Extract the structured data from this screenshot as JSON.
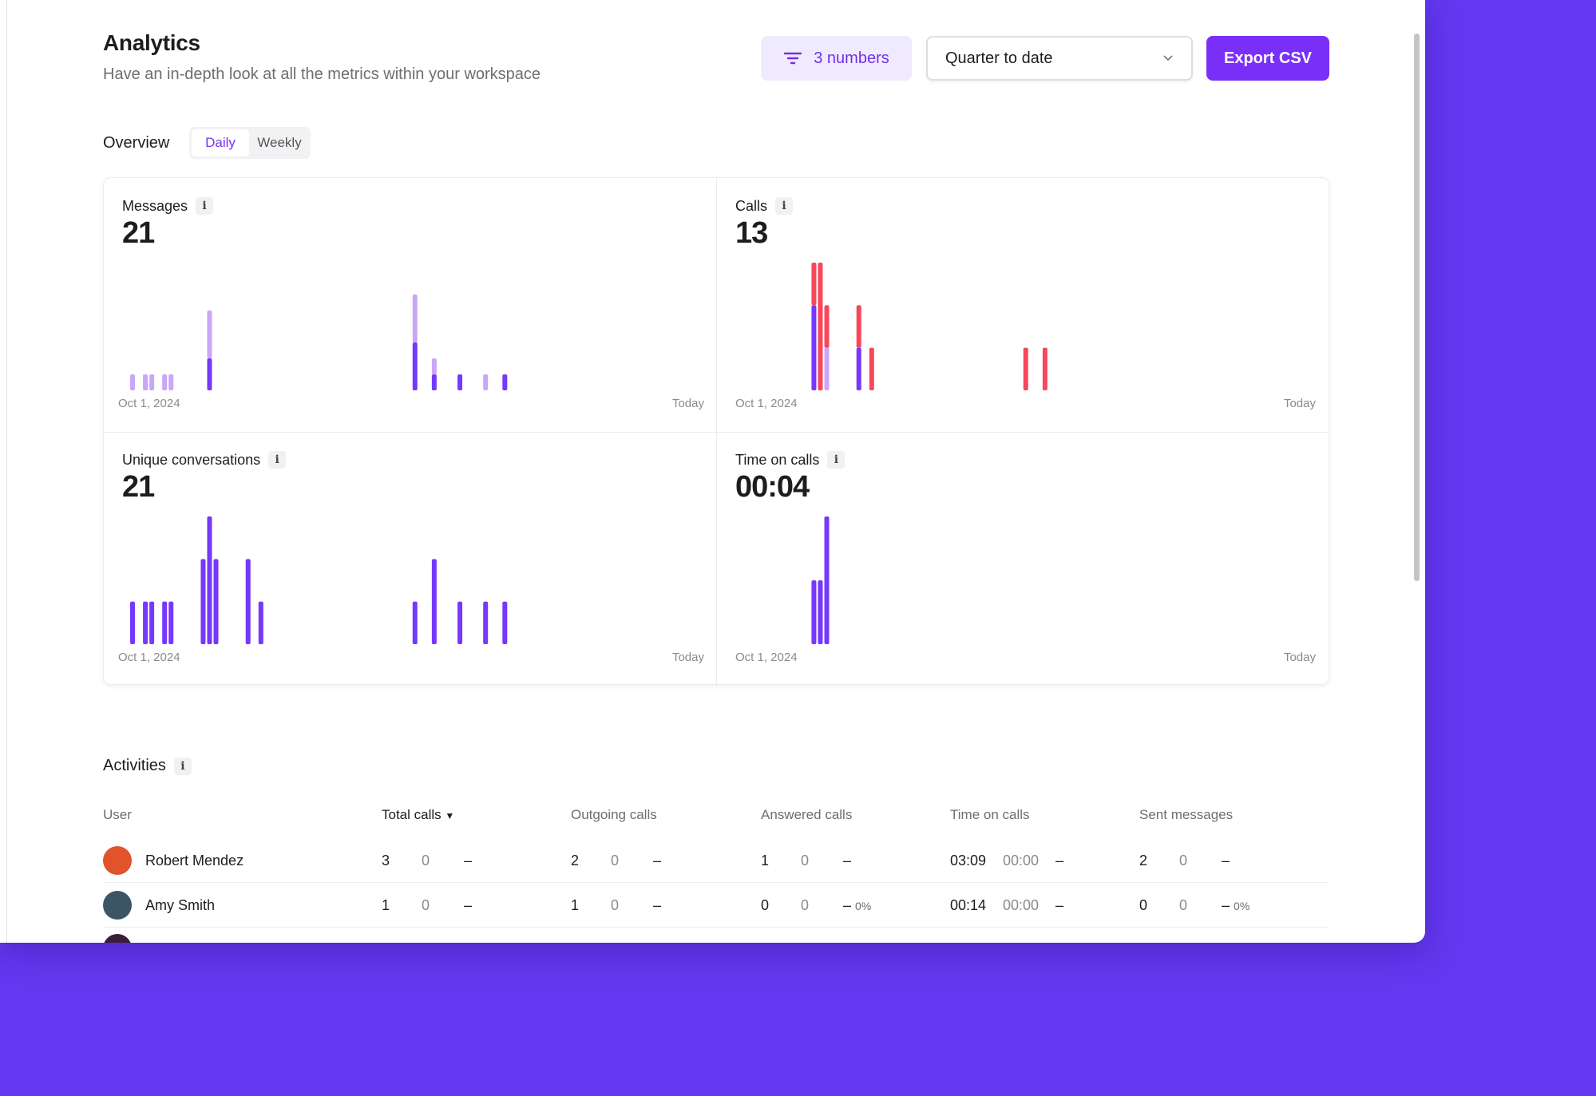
{
  "header": {
    "title": "Analytics",
    "subtitle": "Have an in-depth look at all the metrics within your workspace",
    "filter_label": "3 numbers",
    "period": "Quarter to date",
    "export_label": "Export CSV"
  },
  "overview": {
    "label": "Overview",
    "tabs": [
      {
        "label": "Daily",
        "active": true
      },
      {
        "label": "Weekly",
        "active": false
      }
    ]
  },
  "colors": {
    "accent": "#7a2ff7",
    "light": "#c9a6f7",
    "red": "#f7485a",
    "background": "#6338f0"
  },
  "chart_data": [
    {
      "type": "bar",
      "stacked": true,
      "title": "Messages",
      "value": "21",
      "x_range": [
        "2024-10-01",
        "2024-11-28"
      ],
      "x_start_label": "Oct 1, 2024",
      "x_end_label": "Today",
      "ylim": [
        0,
        8
      ],
      "series": [
        {
          "color": "#7638fa",
          "points": [
            [
              "2024-10-13",
              2
            ],
            [
              "2024-11-14",
              3
            ],
            [
              "2024-11-17",
              1
            ],
            [
              "2024-11-21",
              1
            ],
            [
              "2024-11-28",
              1
            ]
          ]
        },
        {
          "color": "#c9a6f7",
          "points": [
            [
              "2024-10-01",
              1
            ],
            [
              "2024-10-03",
              1
            ],
            [
              "2024-10-04",
              1
            ],
            [
              "2024-10-06",
              1
            ],
            [
              "2024-10-07",
              1
            ],
            [
              "2024-10-13",
              3
            ],
            [
              "2024-11-14",
              3
            ],
            [
              "2024-11-17",
              1
            ],
            [
              "2024-11-25",
              1
            ]
          ]
        }
      ]
    },
    {
      "type": "bar",
      "stacked": true,
      "title": "Calls",
      "value": "13",
      "x_range": [
        "2024-10-01",
        "2024-11-28"
      ],
      "x_start_label": "Oct 1, 2024",
      "x_end_label": "Today",
      "ylim": [
        0,
        3
      ],
      "series": [
        {
          "color": "#7638fa",
          "points": [
            [
              "2024-10-12",
              2
            ],
            [
              "2024-10-19",
              1
            ]
          ]
        },
        {
          "color": "#c9a6f7",
          "points": [
            [
              "2024-10-14",
              1
            ]
          ]
        },
        {
          "color": "#f7485a",
          "points": [
            [
              "2024-10-12",
              1
            ],
            [
              "2024-10-13",
              3
            ],
            [
              "2024-10-14",
              1
            ],
            [
              "2024-10-19",
              1
            ],
            [
              "2024-10-21",
              1
            ],
            [
              "2024-11-14",
              1
            ],
            [
              "2024-11-17",
              1
            ]
          ]
        }
      ]
    },
    {
      "type": "bar",
      "stacked": false,
      "title": "Unique conversations",
      "value": "21",
      "x_range": [
        "2024-10-01",
        "2024-11-28"
      ],
      "x_start_label": "Oct 1, 2024",
      "x_end_label": "Today",
      "ylim": [
        0,
        3
      ],
      "series": [
        {
          "color": "#7638fa",
          "points": [
            [
              "2024-10-01",
              1
            ],
            [
              "2024-10-03",
              1
            ],
            [
              "2024-10-04",
              1
            ],
            [
              "2024-10-06",
              1
            ],
            [
              "2024-10-07",
              1
            ],
            [
              "2024-10-12",
              2
            ],
            [
              "2024-10-13",
              3
            ],
            [
              "2024-10-14",
              2
            ],
            [
              "2024-10-19",
              2
            ],
            [
              "2024-10-21",
              1
            ],
            [
              "2024-11-14",
              1
            ],
            [
              "2024-11-17",
              2
            ],
            [
              "2024-11-21",
              1
            ],
            [
              "2024-11-25",
              1
            ],
            [
              "2024-11-28",
              1
            ]
          ]
        }
      ]
    },
    {
      "type": "bar",
      "stacked": false,
      "title": "Time on calls",
      "value": "00:04",
      "x_range": [
        "2024-10-01",
        "2024-11-28"
      ],
      "x_start_label": "Oct 1, 2024",
      "x_end_label": "Today",
      "ylim": [
        0,
        4
      ],
      "series": [
        {
          "color": "#7638fa",
          "points": [
            [
              "2024-10-12",
              2
            ],
            [
              "2024-10-13",
              2
            ],
            [
              "2024-10-14",
              4
            ]
          ]
        }
      ]
    }
  ],
  "activities": {
    "title": "Activities",
    "columns": [
      "User",
      "Total calls",
      "Outgoing calls",
      "Answered calls",
      "Time on calls",
      "Sent messages"
    ],
    "sorted_column": "Total calls",
    "rows": [
      {
        "name": "Robert Mendez",
        "avatar_color": "#e0532b",
        "cells": [
          [
            "3",
            "0",
            "–",
            ""
          ],
          [
            "2",
            "0",
            "–",
            ""
          ],
          [
            "1",
            "0",
            "–",
            ""
          ],
          [
            "03:09",
            "00:00",
            "–",
            ""
          ],
          [
            "2",
            "0",
            "–",
            ""
          ]
        ]
      },
      {
        "name": "Amy Smith",
        "avatar_color": "#3b5566",
        "cells": [
          [
            "1",
            "0",
            "–",
            ""
          ],
          [
            "1",
            "0",
            "–",
            ""
          ],
          [
            "0",
            "0",
            "–",
            "0%"
          ],
          [
            "00:14",
            "00:00",
            "–",
            ""
          ],
          [
            "0",
            "0",
            "–",
            "0%"
          ]
        ]
      }
    ]
  }
}
